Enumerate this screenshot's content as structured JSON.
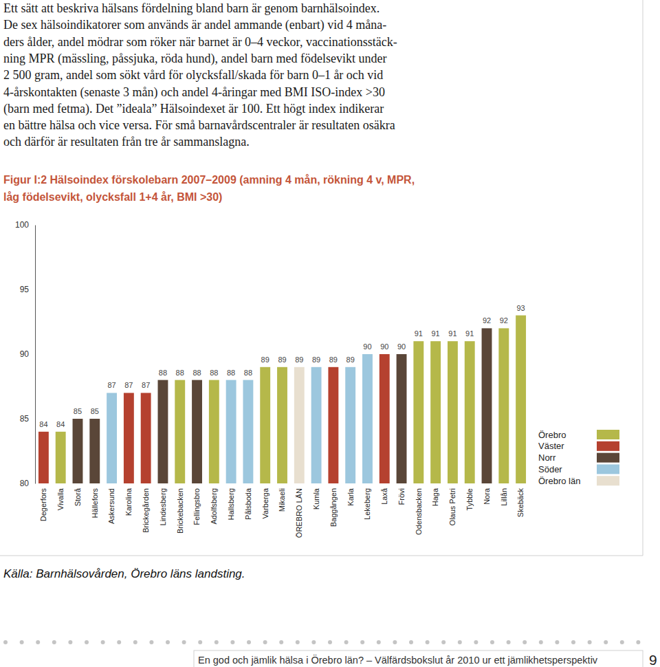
{
  "intro": [
    "Ett sätt att beskriva hälsans fördelning bland barn är genom barnhälsoindex.",
    "De sex hälsoindikatorer som används är andel ammande (enbart) vid 4 måna-",
    "ders ålder, andel mödrar som röker när barnet är 0–4 veckor, vaccinationsstäck-",
    "ning MPR (mässling, påssjuka, röda hund), andel barn med födelsevikt under",
    "2 500 gram, andel som sökt vård för olycksfall/skada för barn 0–1 år och vid",
    "4-årskontakten (senaste 3 mån) och andel 4-åringar med BMI ISO-index >30",
    "(barn med fetma). Det ”ideala” Hälsoindexet är 100. Ett högt index indikerar",
    "en bättre hälsa och vice versa. För små barnavårdscentraler är resultaten osäkra",
    "och därför är resultaten från tre år sammanslagna."
  ],
  "chart_data": {
    "type": "bar",
    "title": [
      "Figur I:2 Hälsoindex förskolebarn 2007–2009 (amning 4 mån, rökning 4 v, MPR,",
      "låg födelsevikt, olycksfall 1+4 år, BMI >30)"
    ],
    "categories": [
      "Degerfors",
      "Vivalla",
      "Storå",
      "Hällefors",
      "Askersund",
      "Karolina",
      "Brickegården",
      "Lindesberg",
      "Brickebacken",
      "Fellingsbro",
      "Adolfsberg",
      "Hallsberg",
      "Pålsboda",
      "Varberga",
      "Mikaeli",
      "ÖREBRO LÄN",
      "Kumla",
      "Baggången",
      "Karla",
      "Lekeberg",
      "Laxå",
      "Frövi",
      "Odensbacken",
      "Haga",
      "Olaus Petri",
      "Tybble",
      "Nora",
      "Lillån",
      "Skebäck"
    ],
    "series": [
      {
        "name": "Örebro",
        "color": "#b5b84a",
        "values": [
          null,
          84,
          null,
          null,
          null,
          null,
          null,
          null,
          88,
          null,
          88,
          null,
          null,
          89,
          89,
          null,
          null,
          null,
          null,
          null,
          null,
          null,
          91,
          91,
          91,
          91,
          null,
          92,
          93
        ]
      },
      {
        "name": "Väster",
        "color": "#b5412f",
        "values": [
          84,
          null,
          null,
          null,
          null,
          87,
          87,
          null,
          null,
          null,
          null,
          null,
          null,
          null,
          null,
          null,
          null,
          89,
          null,
          null,
          90,
          null,
          null,
          null,
          null,
          null,
          null,
          null,
          null
        ]
      },
      {
        "name": "Norr",
        "color": "#5a4638",
        "values": [
          null,
          null,
          85,
          85,
          null,
          null,
          null,
          88,
          null,
          88,
          null,
          null,
          null,
          null,
          null,
          null,
          null,
          null,
          null,
          null,
          null,
          90,
          null,
          null,
          null,
          null,
          92,
          null,
          null
        ]
      },
      {
        "name": "Söder",
        "color": "#9cc7de",
        "values": [
          null,
          null,
          null,
          null,
          87,
          null,
          null,
          null,
          null,
          null,
          null,
          88,
          88,
          null,
          null,
          null,
          89,
          null,
          89,
          90,
          null,
          null,
          null,
          null,
          null,
          null,
          null,
          null,
          null
        ]
      },
      {
        "name": "Örebro län",
        "color": "#e8dfcf",
        "values": [
          null,
          null,
          null,
          null,
          null,
          null,
          null,
          null,
          null,
          null,
          null,
          null,
          null,
          null,
          null,
          89,
          null,
          null,
          null,
          null,
          null,
          null,
          null,
          null,
          null,
          null,
          null,
          null,
          null
        ]
      }
    ],
    "stacked": true,
    "ylim": [
      80,
      100
    ],
    "yticks": [
      80,
      85,
      90,
      95,
      100
    ],
    "grid": false,
    "data_labels": true,
    "legend": "right"
  },
  "source": "Källa: Barnhälsovården, Örebro läns landsting.",
  "footer": {
    "text": "En god och jämlik hälsa i Örebro län? – Välfärdsbokslut år 2010 ur ett jämlikhetsperspektiv",
    "page": "9"
  }
}
